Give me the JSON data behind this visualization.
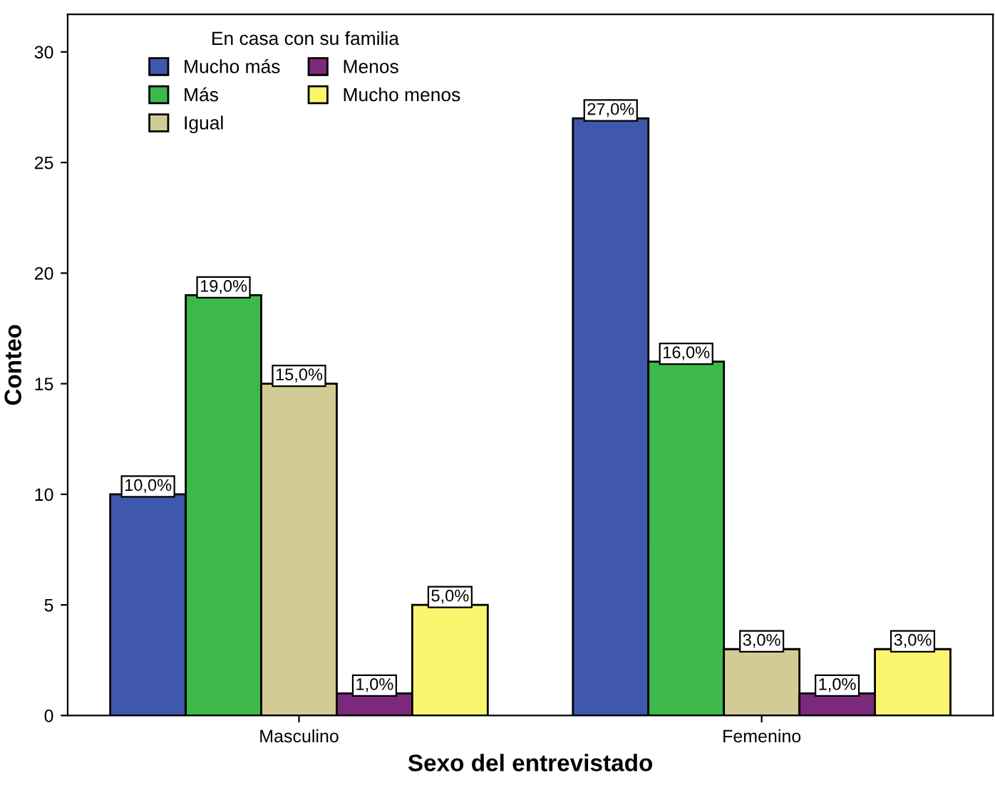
{
  "chart_data": {
    "type": "bar",
    "xlabel": "Sexo del entrevistado",
    "ylabel": "Conteo",
    "legend_title": "En casa con su familia",
    "categories": [
      "Masculino",
      "Femenino"
    ],
    "series": [
      {
        "name": "Mucho más",
        "color": "#3f58ab",
        "values": [
          10,
          27
        ],
        "value_labels": [
          "10,0%",
          "27,0%"
        ]
      },
      {
        "name": "Más",
        "color": "#3cb94a",
        "values": [
          19,
          16
        ],
        "value_labels": [
          "19,0%",
          "16,0%"
        ]
      },
      {
        "name": "Igual",
        "color": "#d3cb95",
        "values": [
          15,
          3
        ],
        "value_labels": [
          "15,0%",
          "3,0%"
        ]
      },
      {
        "name": "Menos",
        "color": "#7b2a7b",
        "values": [
          1,
          1
        ],
        "value_labels": [
          "1,0%",
          "1,0%"
        ]
      },
      {
        "name": "Mucho menos",
        "color": "#fbf56d",
        "values": [
          5,
          3
        ],
        "value_labels": [
          "5,0%",
          "3,0%"
        ]
      }
    ],
    "ylim": [
      0,
      31.7
    ],
    "yticks": [
      0,
      5,
      10,
      15,
      20,
      25,
      30
    ],
    "grid": false,
    "legend": "top left"
  }
}
